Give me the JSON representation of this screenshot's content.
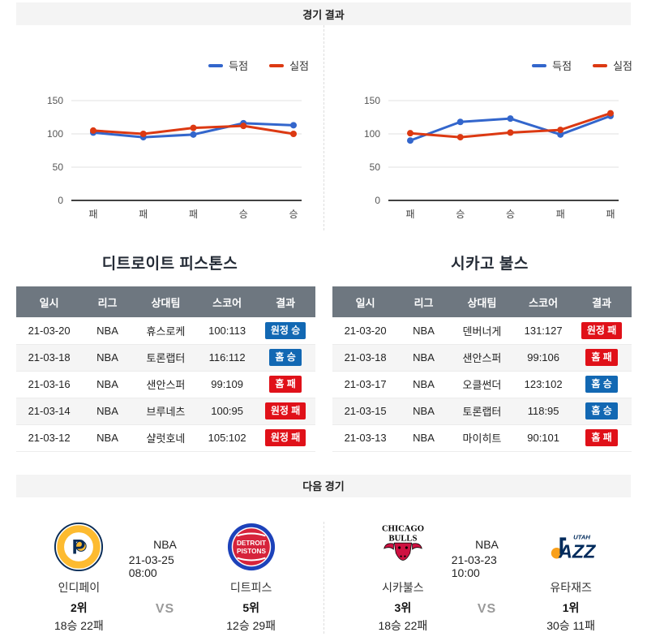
{
  "colors": {
    "scored": "#3366cc",
    "allowed": "#dc3912",
    "win": "#1268b3",
    "loss": "#e01119",
    "table_header_bg": "#6e7780"
  },
  "sections": {
    "results_title": "경기 결과",
    "next_title": "다음 경기"
  },
  "legend": {
    "scored_label": "득점",
    "allowed_label": "실점"
  },
  "table_headers": [
    "일시",
    "리그",
    "상대팀",
    "스코어",
    "결과"
  ],
  "teams": [
    {
      "title": "디트로이트 피스톤스",
      "chart_data": {
        "type": "line",
        "categories": [
          "패",
          "패",
          "패",
          "승",
          "승"
        ],
        "series": [
          {
            "name": "득점",
            "color_key": "scored",
            "values": [
              102,
              95,
              99,
              116,
              113
            ]
          },
          {
            "name": "실점",
            "color_key": "allowed",
            "values": [
              105,
              100,
              109,
              112,
              100
            ]
          }
        ],
        "y_ticks": [
          0,
          50,
          100,
          150
        ],
        "ylim": [
          0,
          150
        ],
        "grid": true,
        "legend_position": "top-right"
      },
      "rows": [
        {
          "date": "21-03-20",
          "league": "NBA",
          "opponent": "휴스로케",
          "score": "100:113",
          "result": "원정 승",
          "outcome": "win"
        },
        {
          "date": "21-03-18",
          "league": "NBA",
          "opponent": "토론랩터",
          "score": "116:112",
          "result": "홈 승",
          "outcome": "win"
        },
        {
          "date": "21-03-16",
          "league": "NBA",
          "opponent": "샌안스퍼",
          "score": "99:109",
          "result": "홈 패",
          "outcome": "loss"
        },
        {
          "date": "21-03-14",
          "league": "NBA",
          "opponent": "브루네츠",
          "score": "100:95",
          "result": "원정 패",
          "outcome": "loss"
        },
        {
          "date": "21-03-12",
          "league": "NBA",
          "opponent": "샬럿호네",
          "score": "105:102",
          "result": "원정 패",
          "outcome": "loss"
        }
      ]
    },
    {
      "title": "시카고 불스",
      "chart_data": {
        "type": "line",
        "categories": [
          "패",
          "승",
          "승",
          "패",
          "패"
        ],
        "series": [
          {
            "name": "득점",
            "color_key": "scored",
            "values": [
              90,
              118,
              123,
              99,
              127
            ]
          },
          {
            "name": "실점",
            "color_key": "allowed",
            "values": [
              101,
              95,
              102,
              106,
              131
            ]
          }
        ],
        "y_ticks": [
          0,
          50,
          100,
          150
        ],
        "ylim": [
          0,
          150
        ],
        "grid": true,
        "legend_position": "top-right"
      },
      "rows": [
        {
          "date": "21-03-20",
          "league": "NBA",
          "opponent": "덴버너게",
          "score": "131:127",
          "result": "원정 패",
          "outcome": "loss"
        },
        {
          "date": "21-03-18",
          "league": "NBA",
          "opponent": "샌안스퍼",
          "score": "99:106",
          "result": "홈 패",
          "outcome": "loss"
        },
        {
          "date": "21-03-17",
          "league": "NBA",
          "opponent": "오클썬더",
          "score": "123:102",
          "result": "홈 승",
          "outcome": "win"
        },
        {
          "date": "21-03-15",
          "league": "NBA",
          "opponent": "토론랩터",
          "score": "118:95",
          "result": "홈 승",
          "outcome": "win"
        },
        {
          "date": "21-03-13",
          "league": "NBA",
          "opponent": "마이히트",
          "score": "90:101",
          "result": "홈 패",
          "outcome": "loss"
        }
      ]
    }
  ],
  "next_games": [
    {
      "league": "NBA",
      "datetime": "21-03-25 08:00",
      "vs_label": "VS",
      "home": {
        "name": "인디페이",
        "rank": "2위",
        "record": "18승 22패",
        "logo": "pacers"
      },
      "away": {
        "name": "디트피스",
        "rank": "5위",
        "record": "12승 29패",
        "logo": "pistons"
      }
    },
    {
      "league": "NBA",
      "datetime": "21-03-23 10:00",
      "vs_label": "VS",
      "home": {
        "name": "시카불스",
        "rank": "3위",
        "record": "18승 22패",
        "logo": "bulls"
      },
      "away": {
        "name": "유타재즈",
        "rank": "1위",
        "record": "30승 11패",
        "logo": "jazz"
      }
    }
  ]
}
